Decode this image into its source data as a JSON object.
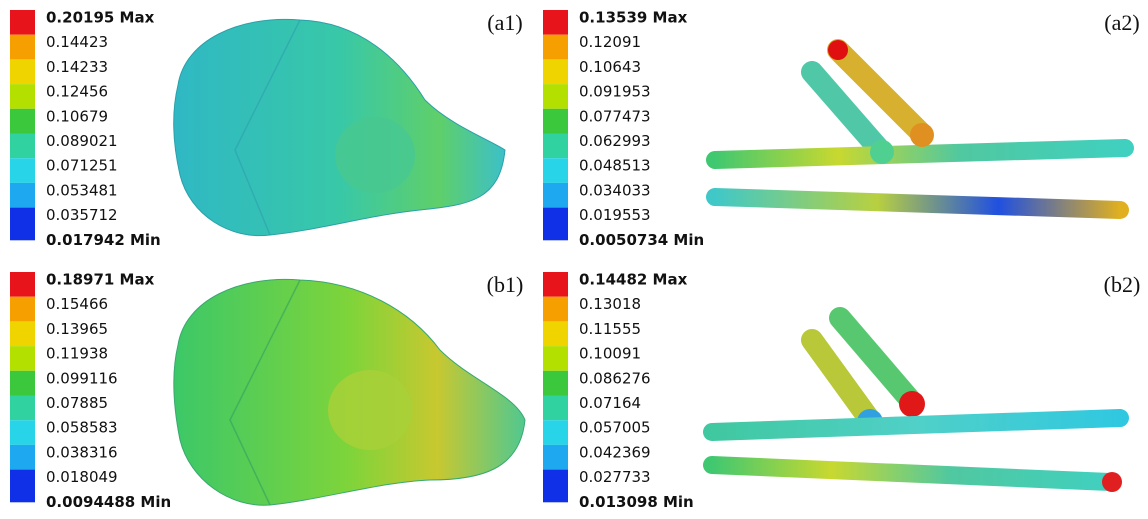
{
  "panels": [
    {
      "label": "(a1)",
      "legend": [
        "0.20195 Max",
        "0.14423",
        "0.14233",
        "0.12456",
        "0.10679",
        "0.089021",
        "0.071251",
        "0.053481",
        "0.035712",
        "0.017942 Min"
      ]
    },
    {
      "label": "(a2)",
      "legend": [
        "0.13539 Max",
        "0.12091",
        "0.10643",
        "0.091953",
        "0.077473",
        "0.062993",
        "0.048513",
        "0.034033",
        "0.019553",
        "0.0050734 Min"
      ]
    },
    {
      "label": "(b1)",
      "legend": [
        "0.18971 Max",
        "0.15466",
        "0.13965",
        "0.11938",
        "0.099116",
        "0.07885",
        "0.058583",
        "0.038316",
        "0.018049",
        "0.0094488 Min"
      ]
    },
    {
      "label": "(b2)",
      "legend": [
        "0.14482 Max",
        "0.13018",
        "0.11555",
        "0.10091",
        "0.086276",
        "0.07164",
        "0.057005",
        "0.042369",
        "0.027733",
        "0.013098 Min"
      ]
    }
  ]
}
